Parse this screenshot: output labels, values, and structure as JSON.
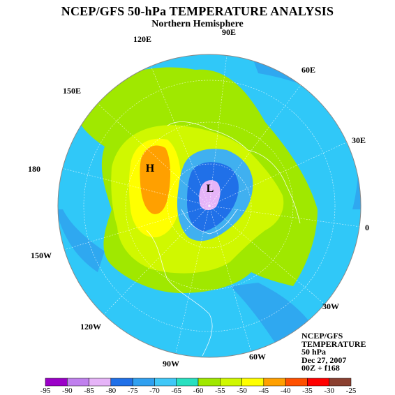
{
  "title": "NCEP/GFS 50-hPa TEMPERATURE ANALYSIS",
  "subtitle": "Northern Hemisphere",
  "longitude_labels": [
    "90E",
    "120E",
    "60E",
    "150E",
    "30E",
    "180",
    "0",
    "150W",
    "30W",
    "120W",
    "60W",
    "90W"
  ],
  "centers": {
    "high": "H",
    "low": "L"
  },
  "info": {
    "line1": "NCEP/GFS",
    "line2": "TEMPERATURE",
    "line3": "50 hPa",
    "line4": "Dec 27, 2007",
    "line5": "00Z + f168"
  },
  "colorbar": {
    "labels": [
      "-95",
      "-90",
      "-85",
      "-80",
      "-75",
      "-70",
      "-65",
      "-60",
      "-55",
      "-50",
      "-45",
      "-40",
      "-35",
      "-30",
      "-25"
    ],
    "colors": [
      "#9b00c8",
      "#c080ee",
      "#e6b4f8",
      "#2070e8",
      "#30a0f0",
      "#40c8f8",
      "#28e0c0",
      "#a0e800",
      "#d0f800",
      "#ffff00",
      "#ffa000",
      "#ff5000",
      "#ff0000",
      "#8b4030"
    ]
  },
  "map_colors": {
    "ocean_bg": "#30c8f8",
    "cold_band": "#2fa8f0",
    "green": "#a0e800",
    "yellow_green": "#d0f800",
    "yellow": "#ffff00",
    "orange": "#ffa000",
    "blue": "#2070e8",
    "mid_blue": "#40b0f0",
    "pink": "#e6b4f8",
    "outline": "#ffffff",
    "grid": "#ffffff"
  }
}
